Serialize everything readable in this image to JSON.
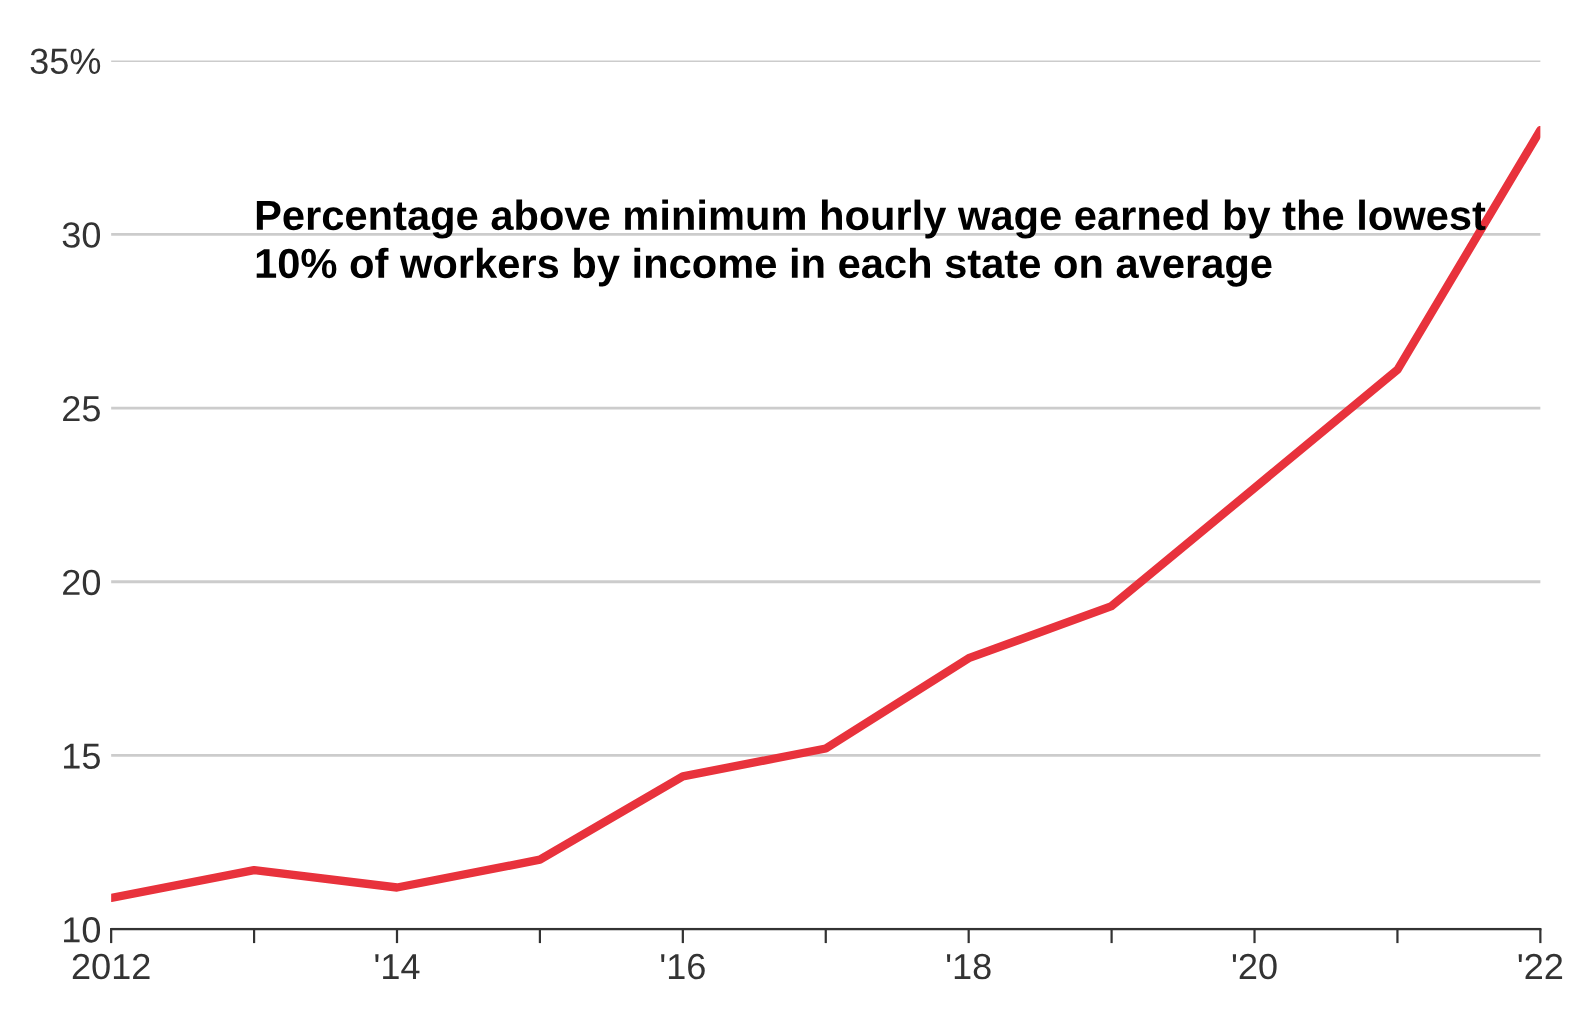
{
  "chart_data": {
    "type": "line",
    "annotations": [
      "Percentage above minimum hourly wage earned by the lowest 10% of workers by income in each state on average"
    ],
    "x": [
      2012,
      2013,
      2014,
      2015,
      2016,
      2017,
      2018,
      2019,
      2020,
      2021,
      2022
    ],
    "series": [
      {
        "color": "#e8323c",
        "values": [
          10.9,
          11.7,
          11.2,
          12.0,
          14.4,
          15.2,
          17.8,
          19.3,
          22.7,
          26.1,
          33.0
        ]
      }
    ],
    "xlim": [
      2012,
      2022
    ],
    "xticks": [
      {
        "value": 2012,
        "label": "2012"
      },
      {
        "value": 2013,
        "label": null
      },
      {
        "value": 2014,
        "label": "'14"
      },
      {
        "value": 2015,
        "label": null
      },
      {
        "value": 2016,
        "label": "'16"
      },
      {
        "value": 2017,
        "label": null
      },
      {
        "value": 2018,
        "label": "'18"
      },
      {
        "value": 2019,
        "label": null
      },
      {
        "value": 2020,
        "label": "'20"
      },
      {
        "value": 2021,
        "label": null
      },
      {
        "value": 2022,
        "label": "'22"
      }
    ],
    "ylim": [
      10,
      35
    ],
    "yticks": [
      10,
      15,
      20,
      25,
      30,
      {
        "value": 35,
        "label": "35%"
      }
    ],
    "grid": "y",
    "marker": "none",
    "line_style": "solid"
  }
}
